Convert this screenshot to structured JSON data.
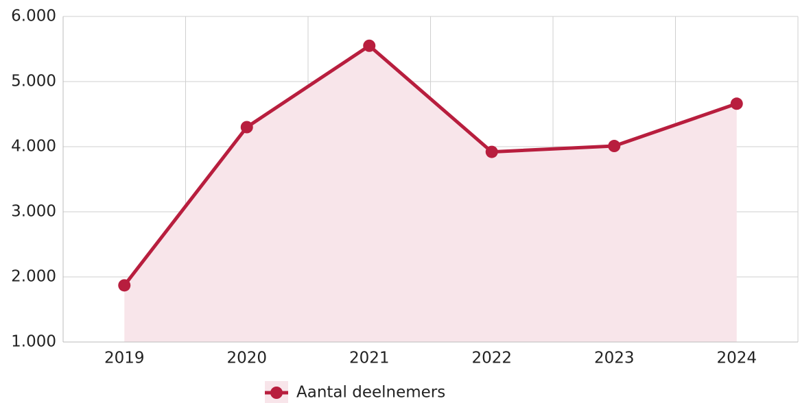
{
  "chart_data": {
    "type": "line",
    "categories": [
      "2019",
      "2020",
      "2021",
      "2022",
      "2023",
      "2024"
    ],
    "series": [
      {
        "name": "Aantal deelnemers",
        "color": "#b81e3e",
        "fill": "#f8e5ea",
        "area": true,
        "values": [
          1870,
          4300,
          5550,
          3920,
          4010,
          4660
        ]
      }
    ],
    "ylim": [
      1000,
      6000
    ],
    "yticks": [
      {
        "value": 1000,
        "label": "1.000"
      },
      {
        "value": 2000,
        "label": "2.000"
      },
      {
        "value": 3000,
        "label": "3.000"
      },
      {
        "value": 4000,
        "label": "4.000"
      },
      {
        "value": 5000,
        "label": "5.000"
      },
      {
        "value": 6000,
        "label": "6.000"
      }
    ],
    "grid": true,
    "legend": "bottom"
  }
}
